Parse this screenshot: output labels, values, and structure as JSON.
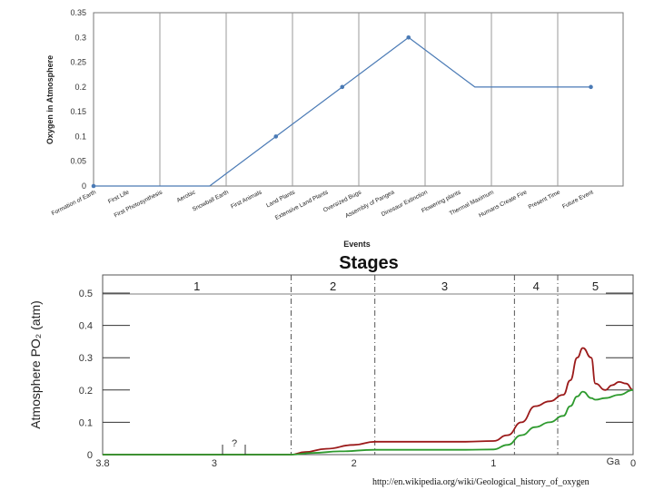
{
  "chart_data": [
    {
      "type": "line",
      "ylabel": "Oxygen in Atmosphere",
      "xlabel": "Events",
      "ylim": [
        0,
        0.35
      ],
      "yticks": [
        "0",
        "0.05",
        "0.1",
        "0.15",
        "0.2",
        "0.25",
        "0.3",
        "0.35"
      ],
      "grid": "vertical",
      "line_color": "#4a7ab5",
      "categories": [
        "Formation of Earth",
        "First Life",
        "First Photosynthesis",
        "Aerobic",
        "Snowball Earth",
        "First Animals",
        "Land Plants",
        "Extensive Land Plants",
        "Oversized Bugs",
        "Assembly of Pangea",
        "Dinosaur Extinction",
        "Flowering plants",
        "Thermal Maximum",
        "Humans Create Fire",
        "Present Time",
        "Future Event"
      ],
      "points": [
        {
          "x": 0,
          "y": 0
        },
        {
          "x": 1.75,
          "y": 0
        },
        {
          "x": 2.75,
          "y": 0.1
        },
        {
          "x": 3.75,
          "y": 0.2
        },
        {
          "x": 4.75,
          "y": 0.3
        },
        {
          "x": 5.75,
          "y": 0.2
        },
        {
          "x": 7.5,
          "y": 0.2
        }
      ],
      "markers_at": [
        0,
        2,
        3,
        4,
        6
      ]
    },
    {
      "type": "line",
      "title": "Stages",
      "ylabel": "Atmosphere PO₂ (atm)",
      "xlabel": "Ga",
      "xlim": [
        3.8,
        0
      ],
      "ylim": [
        0,
        0.5
      ],
      "xticks": [
        "3.8",
        "3",
        "2",
        "1",
        "0"
      ],
      "yticks": [
        "0",
        "0.1",
        "0.2",
        "0.3",
        "0.4",
        "0.5"
      ],
      "stages": [
        {
          "label": "1",
          "from": 3.8,
          "to": 2.45
        },
        {
          "label": "2",
          "from": 2.45,
          "to": 1.85
        },
        {
          "label": "3",
          "from": 1.85,
          "to": 0.85
        },
        {
          "label": "4",
          "from": 0.85,
          "to": 0.54
        },
        {
          "label": "5",
          "from": 0.54,
          "to": 0
        }
      ],
      "annotation": "?",
      "series": [
        {
          "color": "#9b1a1a",
          "x": [
            3.8,
            2.45,
            2.35,
            2.2,
            2.0,
            1.85,
            1.5,
            1.2,
            1.0,
            0.9,
            0.8,
            0.7,
            0.6,
            0.5,
            0.45,
            0.4,
            0.36,
            0.3,
            0.27,
            0.2,
            0.15,
            0.1,
            0.05,
            0
          ],
          "y": [
            0,
            0,
            0.008,
            0.018,
            0.03,
            0.04,
            0.04,
            0.04,
            0.042,
            0.06,
            0.1,
            0.15,
            0.165,
            0.185,
            0.23,
            0.3,
            0.33,
            0.3,
            0.22,
            0.2,
            0.215,
            0.225,
            0.22,
            0.2
          ]
        },
        {
          "color": "#2e9a2e",
          "x": [
            3.8,
            2.45,
            2.3,
            2.1,
            1.85,
            1.5,
            1.2,
            1.0,
            0.9,
            0.8,
            0.7,
            0.6,
            0.5,
            0.45,
            0.4,
            0.36,
            0.3,
            0.27,
            0.2,
            0.1,
            0
          ],
          "y": [
            0,
            0,
            0.005,
            0.01,
            0.015,
            0.015,
            0.015,
            0.016,
            0.03,
            0.06,
            0.085,
            0.1,
            0.12,
            0.15,
            0.18,
            0.195,
            0.175,
            0.17,
            0.175,
            0.185,
            0.2
          ]
        }
      ]
    }
  ],
  "source_url": "http://en.wikipedia.org/wiki/Geological_history_of_oxygen"
}
